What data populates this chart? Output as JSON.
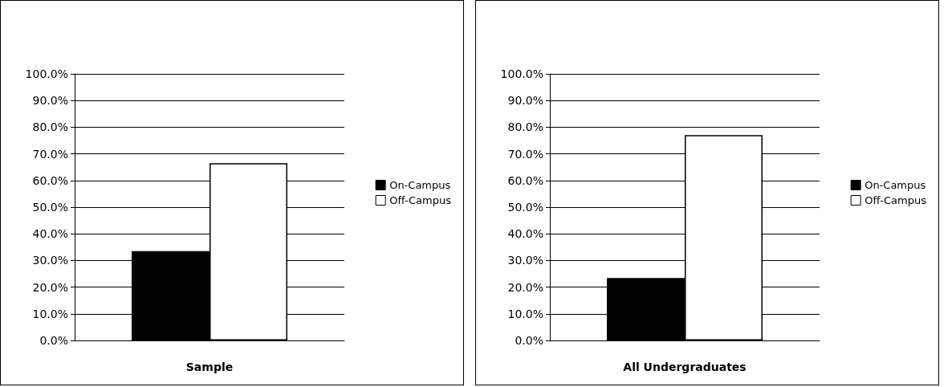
{
  "chart_data": [
    {
      "type": "bar",
      "xlabel": "Sample",
      "categories": [
        null
      ],
      "ylim": [
        0,
        100
      ],
      "yticks": [
        {
          "value": 0,
          "label": "0.0%"
        },
        {
          "value": 10,
          "label": "10.0%"
        },
        {
          "value": 20,
          "label": "20.0%"
        },
        {
          "value": 30,
          "label": "30.0%"
        },
        {
          "value": 40,
          "label": "40.0%"
        },
        {
          "value": 50,
          "label": "50.0%"
        },
        {
          "value": 60,
          "label": "60.0%"
        },
        {
          "value": 70,
          "label": "70.0%"
        },
        {
          "value": 80,
          "label": "80.0%"
        },
        {
          "value": 90,
          "label": "90.0%"
        },
        {
          "value": 100,
          "label": "100.0%"
        }
      ],
      "grid": "y",
      "legend": "right",
      "series": [
        {
          "name": "On-Campus",
          "color": "#000000",
          "values": [
            33.5
          ]
        },
        {
          "name": "Off-Campus",
          "color": "#ffffff",
          "values": [
            66.5
          ]
        }
      ]
    },
    {
      "type": "bar",
      "xlabel": "All Undergraduates",
      "categories": [
        null
      ],
      "ylim": [
        0,
        100
      ],
      "yticks": [
        {
          "value": 0,
          "label": "0.0%"
        },
        {
          "value": 10,
          "label": "10.0%"
        },
        {
          "value": 20,
          "label": "20.0%"
        },
        {
          "value": 30,
          "label": "30.0%"
        },
        {
          "value": 40,
          "label": "40.0%"
        },
        {
          "value": 50,
          "label": "50.0%"
        },
        {
          "value": 60,
          "label": "60.0%"
        },
        {
          "value": 70,
          "label": "70.0%"
        },
        {
          "value": 80,
          "label": "80.0%"
        },
        {
          "value": 90,
          "label": "90.0%"
        },
        {
          "value": 100,
          "label": "100.0%"
        }
      ],
      "grid": "y",
      "legend": "right",
      "series": [
        {
          "name": "On-Campus",
          "color": "#000000",
          "values": [
            23.4
          ]
        },
        {
          "name": "Off-Campus",
          "color": "#ffffff",
          "values": [
            77
          ]
        }
      ]
    }
  ]
}
